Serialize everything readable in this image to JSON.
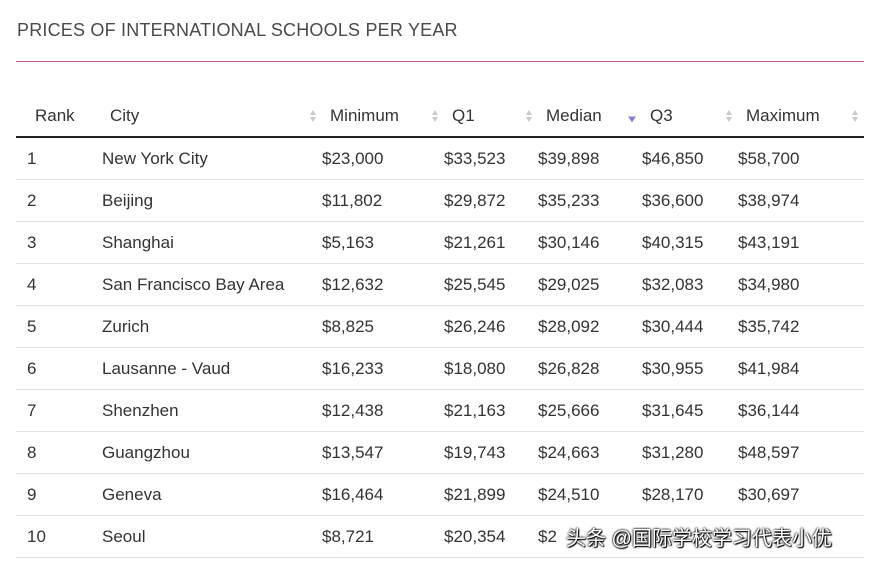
{
  "title": "PRICES OF INTERNATIONAL SCHOOLS PER YEAR",
  "columns": [
    {
      "label": "Rank"
    },
    {
      "label": "City"
    },
    {
      "label": "Minimum"
    },
    {
      "label": "Q1"
    },
    {
      "label": "Median"
    },
    {
      "label": "Q3"
    },
    {
      "label": "Maximum"
    }
  ],
  "sort": {
    "column": "Median",
    "direction": "descending",
    "active_color": "#8a7fcf"
  },
  "rows": [
    {
      "rank": "1",
      "city": "New York City",
      "min": "$23,000",
      "q1": "$33,523",
      "median": "$39,898",
      "q3": "$46,850",
      "max": "$58,700"
    },
    {
      "rank": "2",
      "city": "Beijing",
      "min": "$11,802",
      "q1": "$29,872",
      "median": "$35,233",
      "q3": "$36,600",
      "max": "$38,974"
    },
    {
      "rank": "3",
      "city": "Shanghai",
      "min": "$5,163",
      "q1": "$21,261",
      "median": "$30,146",
      "q3": "$40,315",
      "max": "$43,191"
    },
    {
      "rank": "4",
      "city": "San Francisco Bay Area",
      "min": "$12,632",
      "q1": "$25,545",
      "median": "$29,025",
      "q3": "$32,083",
      "max": "$34,980"
    },
    {
      "rank": "5",
      "city": "Zurich",
      "min": "$8,825",
      "q1": "$26,246",
      "median": "$28,092",
      "q3": "$30,444",
      "max": "$35,742"
    },
    {
      "rank": "6",
      "city": "Lausanne - Vaud",
      "min": "$16,233",
      "q1": "$18,080",
      "median": "$26,828",
      "q3": "$30,955",
      "max": "$41,984"
    },
    {
      "rank": "7",
      "city": "Shenzhen",
      "min": "$12,438",
      "q1": "$21,163",
      "median": "$25,666",
      "q3": "$31,645",
      "max": "$36,144"
    },
    {
      "rank": "8",
      "city": "Guangzhou",
      "min": "$13,547",
      "q1": "$19,743",
      "median": "$24,663",
      "q3": "$31,280",
      "max": "$48,597"
    },
    {
      "rank": "9",
      "city": "Geneva",
      "min": "$16,464",
      "q1": "$21,899",
      "median": "$24,510",
      "q3": "$28,170",
      "max": "$30,697"
    },
    {
      "rank": "10",
      "city": "Seoul",
      "min": "$8,721",
      "q1": "$20,354",
      "median": "$2",
      "q3": "",
      "max": ""
    }
  ],
  "watermark": "头条 @国际学校学习代表小优",
  "colors": {
    "title_rule": "#c6538c",
    "header_rule": "#222222",
    "row_rule": "#e3e3e3",
    "text": "#333333"
  }
}
